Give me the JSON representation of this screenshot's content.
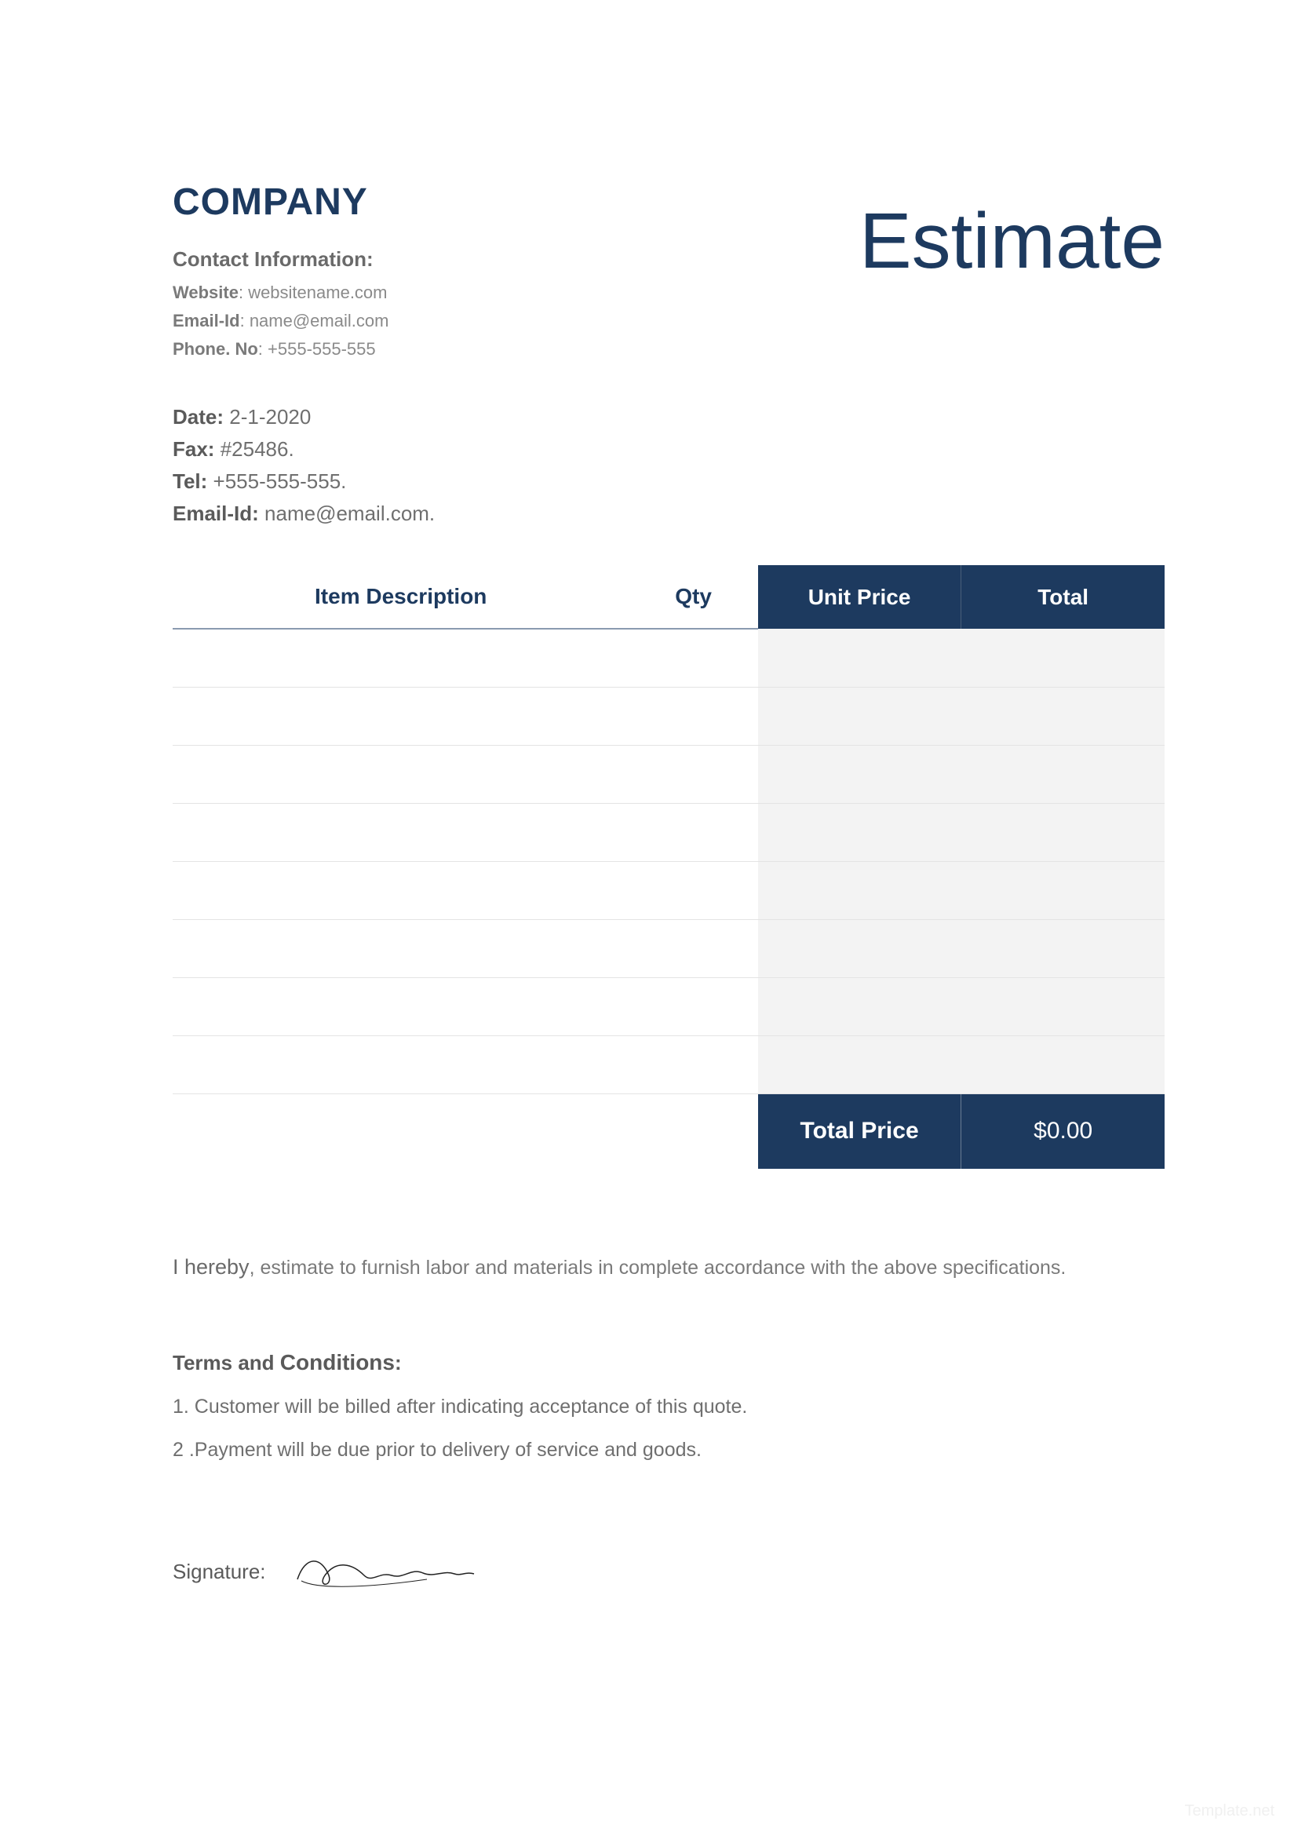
{
  "header": {
    "company_name": "COMPANY",
    "doc_title": "Estimate",
    "contact_heading": "Contact Information:",
    "website_label": "Website",
    "website_value": "websitename.com",
    "email_label": "Email-Id",
    "email_value": "name@email.com",
    "phone_label": "Phone. No",
    "phone_value": "+555-555-555"
  },
  "meta": {
    "date_label": "Date:",
    "date_value": "2-1-2020",
    "fax_label": "Fax:",
    "fax_value": "#25486.",
    "tel_label": "Tel:",
    "tel_value": "+555-555-555.",
    "email_label": "Email-Id:",
    "email_value": "name@email.com."
  },
  "table": {
    "headers": {
      "description": "Item Description",
      "qty": "Qty",
      "unit_price": "Unit Price",
      "total": "Total"
    },
    "row_count": 8,
    "footer": {
      "label": "Total Price",
      "value": "$0.00"
    },
    "colors": {
      "header_dark_bg": "#1d3a5f",
      "header_dark_text": "#ffffff",
      "header_light_text": "#1d3a5f",
      "header_underline": "#8a9ab0",
      "row_right_bg": "#f3f3f3",
      "row_border": "#e4e4e4"
    }
  },
  "declaration": {
    "lead": "I hereby",
    "rest": ", estimate to furnish labor and materials in complete accordance with the above specifications."
  },
  "terms": {
    "heading_prefix": "Terms and ",
    "heading_bold": "Conditions",
    "heading_suffix": ":",
    "items": [
      "1. Customer will be billed after indicating acceptance of this quote.",
      "2 .Payment will be due prior to delivery of service and goods."
    ]
  },
  "signature": {
    "label": "Signature:"
  },
  "watermark": "Template.net"
}
